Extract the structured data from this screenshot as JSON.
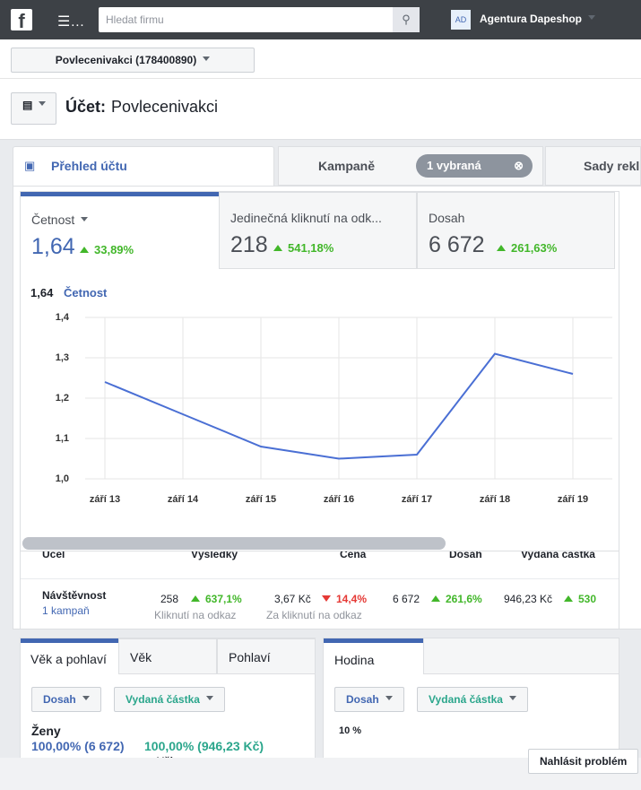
{
  "topbar": {
    "search_placeholder": "Hledat firmu",
    "avatar": "AD",
    "account": "Agentura Dapeshop"
  },
  "account_selector": "Povlecenivakci (178400890)",
  "header": {
    "label": "Účet:",
    "name": "Povlecenivakci"
  },
  "tabs": {
    "overview": "Přehled účtu",
    "campaigns": "Kampaně",
    "selected": "1 vybraná",
    "adsets": "Sady rekl"
  },
  "metrics": [
    {
      "label": "Četnost",
      "value": "1,64",
      "change": "33,89%"
    },
    {
      "label": "Jedinečná kliknutí na odk...",
      "value": "218",
      "change": "541,18%"
    },
    {
      "label": "Dosah",
      "value": "6 672",
      "change": "261,63%"
    }
  ],
  "chart_data": {
    "type": "line",
    "title_value": "1,64",
    "title": "Četnost",
    "color": "#4a6fd4",
    "categories": [
      "září 13",
      "září 14",
      "září 15",
      "září 16",
      "září 17",
      "září 18",
      "září 19"
    ],
    "values": [
      1.24,
      1.16,
      1.08,
      1.05,
      1.06,
      1.31,
      1.26
    ],
    "ylim": [
      1.0,
      1.4
    ],
    "yticks": [
      {
        "value": 1.0,
        "label": "1,0"
      },
      {
        "value": 1.1,
        "label": "1,1"
      },
      {
        "value": 1.2,
        "label": "1,2"
      },
      {
        "value": 1.3,
        "label": "1,3"
      },
      {
        "value": 1.4,
        "label": "1,4"
      }
    ],
    "grid": true
  },
  "table": {
    "headers": [
      "Účel",
      "Výsledky",
      "Cena",
      "Dosah",
      "Vydaná částka"
    ],
    "row": {
      "name": "Návštěvnost",
      "sub": "1 kampaň",
      "results": "258",
      "results_change": "637,1%",
      "results_label": "Kliknutí na odkaz",
      "cost": "3,67 Kč",
      "cost_change": "14,4%",
      "cost_label": "Za kliknutí na odkaz",
      "reach": "6 672",
      "reach_change": "261,6%",
      "spend": "946,23 Kč",
      "spend_change": "530"
    }
  },
  "demographics": {
    "tabs": [
      "Věk a pohlaví",
      "Věk",
      "Pohlaví"
    ],
    "dropdowns": [
      "Dosah",
      "Vydaná částka"
    ],
    "group": "Ženy",
    "reach": "100,00% (6 672)",
    "spend": "100,00% (946,23 Kč)",
    "next": "Věk"
  },
  "hours": {
    "tab": "Hodina",
    "dropdowns": [
      "Dosah",
      "Vydaná částka"
    ],
    "axis_label": "10 %"
  },
  "report_button": "Nahlásit problém"
}
